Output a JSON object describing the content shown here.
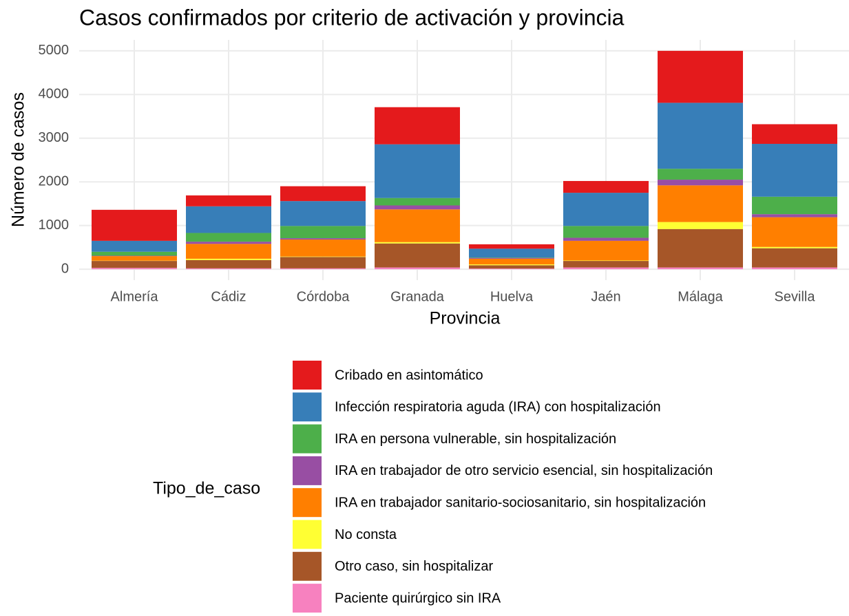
{
  "chart_data": {
    "type": "stacked_bar",
    "title": "Casos confirmados por criterio de activación y provincia",
    "x_label": "Provincia",
    "y_label": "Número de casos",
    "legend_title": "Tipo_de_caso",
    "categories": [
      "Almería",
      "Cádiz",
      "Córdoba",
      "Granada",
      "Huelva",
      "Jaén",
      "Málaga",
      "Sevilla"
    ],
    "series": [
      {
        "name": "Cribado en asintomático",
        "color": "#e41a1c",
        "values": [
          710,
          250,
          340,
          850,
          100,
          270,
          1190,
          450
        ]
      },
      {
        "name": "Infección respiratoria aguda (IRA) con hospitalización",
        "color": "#377eb8",
        "values": [
          250,
          610,
          570,
          1230,
          200,
          760,
          1510,
          1210
        ]
      },
      {
        "name": "IRA en persona vulnerable, sin hospitalización",
        "color": "#4daf4a",
        "values": [
          90,
          200,
          280,
          170,
          10,
          270,
          250,
          400
        ]
      },
      {
        "name": "IRA en trabajador de otro servicio esencial, sin hospitalización",
        "color": "#984ea3",
        "values": [
          10,
          50,
          30,
          90,
          20,
          70,
          130,
          70
        ]
      },
      {
        "name": "IRA en trabajador sanitario-sociosanitario, sin hospitalización",
        "color": "#ff7f00",
        "values": [
          105,
          340,
          390,
          750,
          130,
          450,
          840,
          680
        ]
      },
      {
        "name": "No consta",
        "color": "#ffff33",
        "values": [
          5,
          30,
          10,
          30,
          20,
          10,
          160,
          30
        ]
      },
      {
        "name": "Otro caso, sin hospitalizar",
        "color": "#a65628",
        "values": [
          160,
          190,
          260,
          550,
          75,
          150,
          880,
          440
        ]
      },
      {
        "name": "Paciente quirúrgico sin IRA",
        "color": "#f781bf",
        "values": [
          30,
          20,
          20,
          40,
          15,
          40,
          40,
          40
        ]
      }
    ],
    "ylim": [
      -250,
      5250
    ],
    "yticks": [
      0,
      1000,
      2000,
      3000,
      4000,
      5000
    ],
    "grid": true
  }
}
